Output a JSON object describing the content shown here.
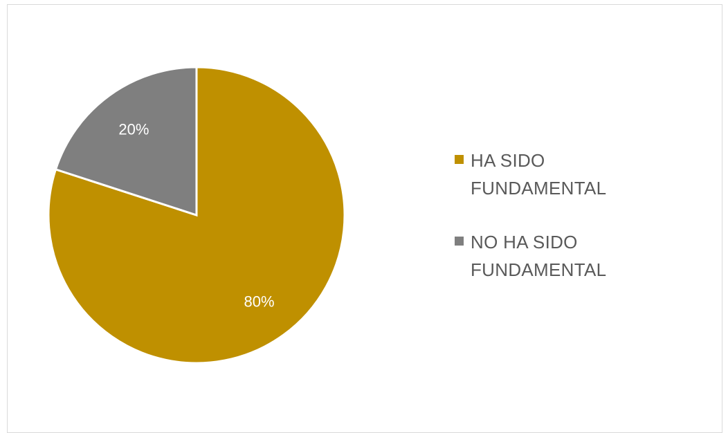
{
  "chart_data": {
    "type": "pie",
    "categories": [
      "HA SIDO FUNDAMENTAL",
      "NO HA SIDO FUNDAMENTAL"
    ],
    "values": [
      80,
      20
    ],
    "data_labels": [
      "80%",
      "20%"
    ],
    "colors": [
      "#bf9000",
      "#7f7f7f"
    ],
    "start_angle": "12 o'clock",
    "direction": "clockwise",
    "legend_position": "right",
    "title": ""
  }
}
